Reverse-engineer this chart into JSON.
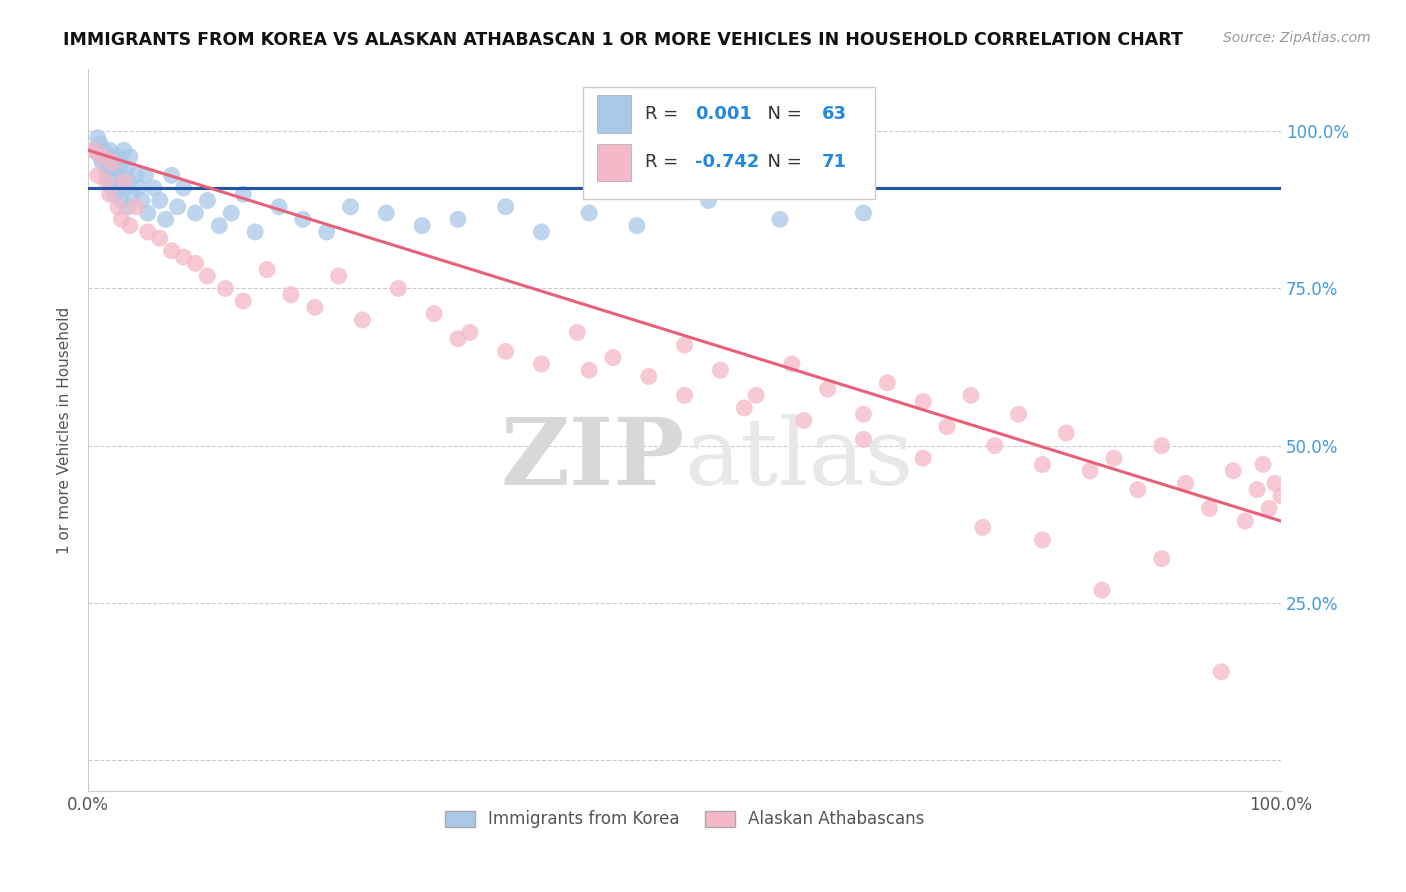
{
  "title": "IMMIGRANTS FROM KOREA VS ALASKAN ATHABASCAN 1 OR MORE VEHICLES IN HOUSEHOLD CORRELATION CHART",
  "source": "Source: ZipAtlas.com",
  "ylabel": "1 or more Vehicles in Household",
  "xlim": [
    0.0,
    1.0
  ],
  "ylim": [
    -0.05,
    1.1
  ],
  "blue_R": 0.001,
  "blue_N": 63,
  "pink_R": -0.742,
  "pink_N": 71,
  "blue_color": "#aac8e8",
  "pink_color": "#f4b8c8",
  "blue_line_color": "#2255aa",
  "pink_line_color": "#e8607a",
  "legend_blue_label": "Immigrants from Korea",
  "legend_pink_label": "Alaskan Athabascans",
  "watermark_zip": "ZIP",
  "watermark_atlas": "atlas",
  "blue_x": [
    0.005,
    0.008,
    0.01,
    0.01,
    0.012,
    0.013,
    0.015,
    0.015,
    0.016,
    0.017,
    0.018,
    0.018,
    0.019,
    0.02,
    0.02,
    0.021,
    0.022,
    0.022,
    0.023,
    0.025,
    0.025,
    0.026,
    0.027,
    0.028,
    0.028,
    0.03,
    0.031,
    0.032,
    0.033,
    0.034,
    0.035,
    0.037,
    0.04,
    0.042,
    0.045,
    0.048,
    0.05,
    0.055,
    0.06,
    0.065,
    0.07,
    0.075,
    0.08,
    0.09,
    0.1,
    0.11,
    0.12,
    0.13,
    0.14,
    0.16,
    0.18,
    0.2,
    0.22,
    0.25,
    0.28,
    0.31,
    0.35,
    0.38,
    0.42,
    0.46,
    0.52,
    0.58,
    0.65
  ],
  "blue_y": [
    0.97,
    0.99,
    0.96,
    0.98,
    0.95,
    0.97,
    0.94,
    0.96,
    0.93,
    0.95,
    0.92,
    0.97,
    0.94,
    0.91,
    0.96,
    0.93,
    0.9,
    0.95,
    0.92,
    0.96,
    0.93,
    0.91,
    0.95,
    0.89,
    0.93,
    0.97,
    0.91,
    0.94,
    0.88,
    0.92,
    0.96,
    0.9,
    0.93,
    0.91,
    0.89,
    0.93,
    0.87,
    0.91,
    0.89,
    0.86,
    0.93,
    0.88,
    0.91,
    0.87,
    0.89,
    0.85,
    0.87,
    0.9,
    0.84,
    0.88,
    0.86,
    0.84,
    0.88,
    0.87,
    0.85,
    0.86,
    0.88,
    0.84,
    0.87,
    0.85,
    0.89,
    0.86,
    0.87
  ],
  "pink_x": [
    0.005,
    0.008,
    0.012,
    0.015,
    0.018,
    0.02,
    0.025,
    0.028,
    0.03,
    0.035,
    0.04,
    0.05,
    0.06,
    0.07,
    0.08,
    0.09,
    0.1,
    0.115,
    0.13,
    0.15,
    0.17,
    0.19,
    0.21,
    0.23,
    0.26,
    0.29,
    0.32,
    0.35,
    0.38,
    0.41,
    0.44,
    0.47,
    0.5,
    0.53,
    0.56,
    0.59,
    0.62,
    0.65,
    0.67,
    0.7,
    0.72,
    0.74,
    0.76,
    0.78,
    0.8,
    0.82,
    0.84,
    0.86,
    0.88,
    0.9,
    0.92,
    0.94,
    0.96,
    0.97,
    0.98,
    0.985,
    0.99,
    0.995,
    0.31,
    0.42,
    0.5,
    0.55,
    0.6,
    0.65,
    0.7,
    0.75,
    0.8,
    0.85,
    0.9,
    0.95,
    1.0
  ],
  "pink_y": [
    0.97,
    0.93,
    0.96,
    0.92,
    0.9,
    0.95,
    0.88,
    0.86,
    0.92,
    0.85,
    0.88,
    0.84,
    0.83,
    0.81,
    0.8,
    0.79,
    0.77,
    0.75,
    0.73,
    0.78,
    0.74,
    0.72,
    0.77,
    0.7,
    0.75,
    0.71,
    0.68,
    0.65,
    0.63,
    0.68,
    0.64,
    0.61,
    0.66,
    0.62,
    0.58,
    0.63,
    0.59,
    0.55,
    0.6,
    0.57,
    0.53,
    0.58,
    0.5,
    0.55,
    0.47,
    0.52,
    0.46,
    0.48,
    0.43,
    0.5,
    0.44,
    0.4,
    0.46,
    0.38,
    0.43,
    0.47,
    0.4,
    0.44,
    0.67,
    0.62,
    0.58,
    0.56,
    0.54,
    0.51,
    0.48,
    0.37,
    0.35,
    0.27,
    0.32,
    0.14,
    0.42
  ]
}
